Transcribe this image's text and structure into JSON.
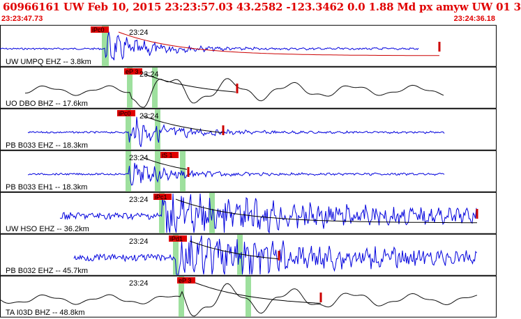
{
  "header": {
    "title": "60966161 UW Feb 10, 2015 23:23:57.03   43.2582 -123.3462  0.0 1.88 Md px amyw UW 01   3",
    "start_time": "23:23:47.73",
    "end_time": "23:24:36.18"
  },
  "colors": {
    "title": "#e00000",
    "trace": "#0000dd",
    "trace_alt": "#111111",
    "pick_box": "#e00000",
    "pick_band": "#9ee09e",
    "coda_fit": "#cc0000",
    "panel_border": "#000000"
  },
  "traces": [
    {
      "station": "UW UMPQ EHZ -- 3.8km",
      "time_label": "23:24",
      "pick_label": "iPc0",
      "color": "blue",
      "amp": "medium",
      "noise": "low",
      "onset": 0.22
    },
    {
      "station": "UO DBO BHZ -- 17.6km",
      "time_label": "23:24",
      "pick_label": "eP 3",
      "color": "black",
      "amp": "large",
      "noise": "wavy",
      "onset": 0.34
    },
    {
      "station": "PB B033 EHZ -- 18.3km",
      "time_label": "23:24",
      "pick_label": "iPc0",
      "color": "blue",
      "amp": "medium",
      "noise": "low",
      "onset": 0.35
    },
    {
      "station": "PB B033 EH1 -- 18.3km",
      "time_label": "23:24",
      "pick_label": "iS 1",
      "color": "blue",
      "amp": "small",
      "noise": "low",
      "onset": 0.42
    },
    {
      "station": "UW HSO EHZ -- 36.2km",
      "time_label": "23:24",
      "pick_label": "iPc1",
      "color": "blue",
      "amp": "large",
      "noise": "high",
      "onset": 0.36
    },
    {
      "station": "PB B032 EHZ -- 45.7km",
      "time_label": "23:24",
      "pick_label": "iPd1",
      "color": "blue",
      "amp": "large",
      "noise": "high",
      "onset": 0.39
    },
    {
      "station": "TA I03D BHZ -- 48.8km",
      "time_label": "23:24",
      "pick_label": "eP 3",
      "color": "black",
      "amp": "large",
      "noise": "wavy",
      "onset": 0.41
    }
  ]
}
